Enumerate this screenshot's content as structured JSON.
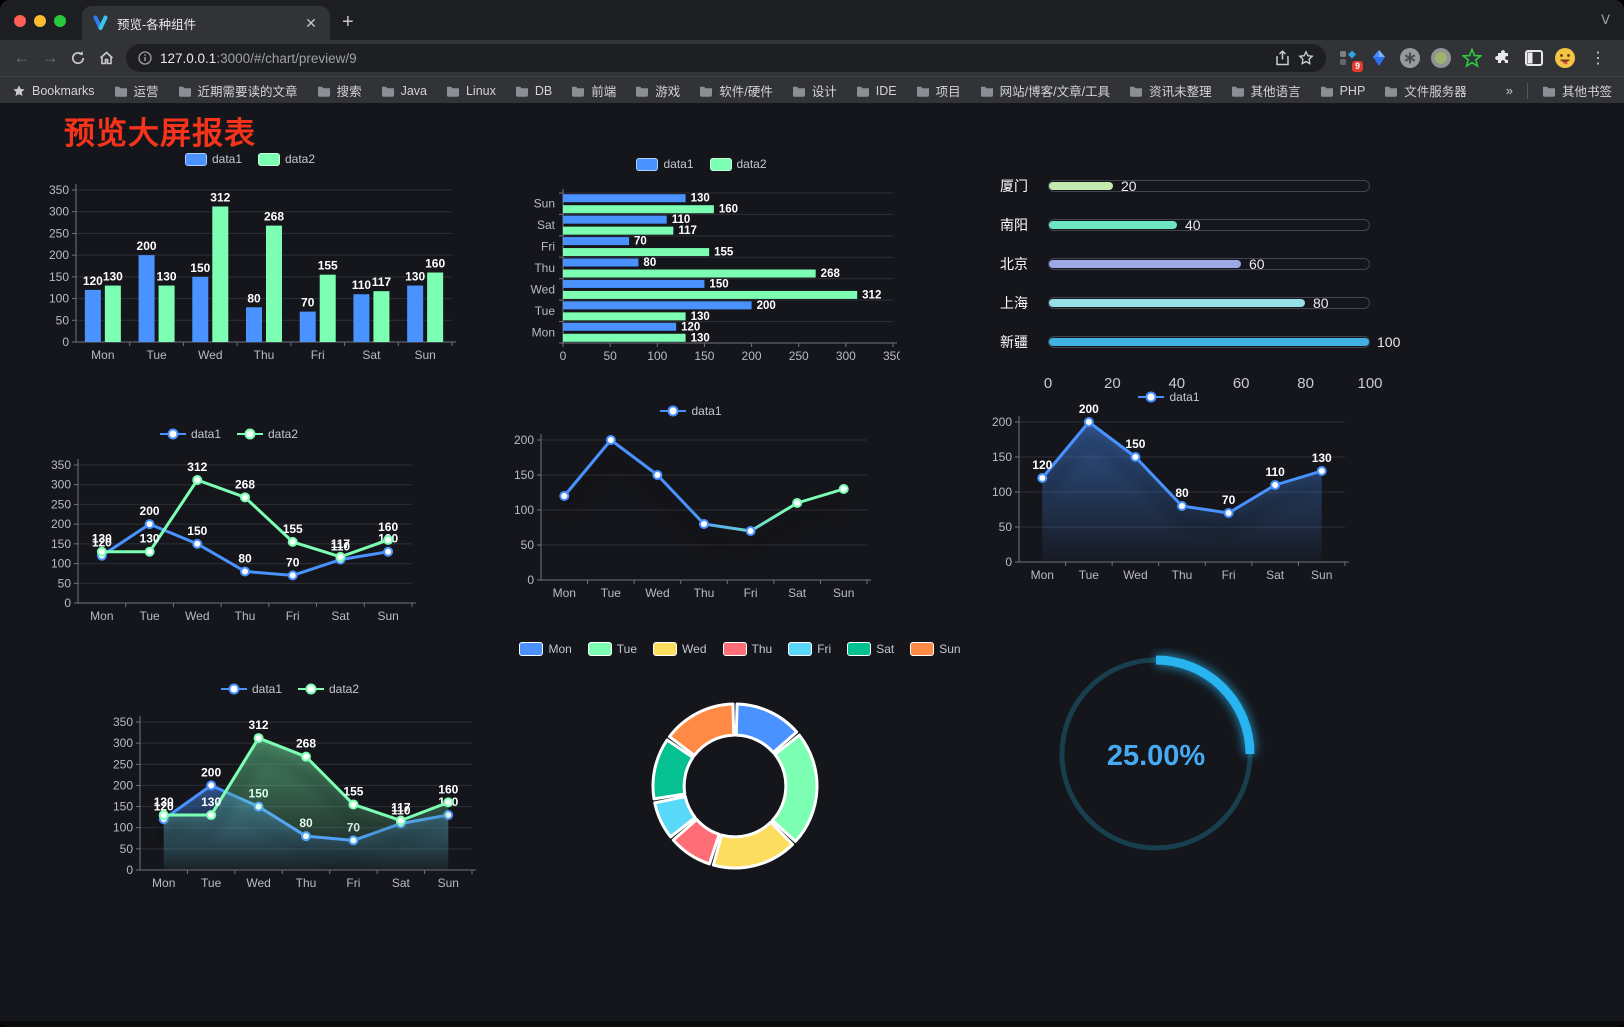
{
  "browser": {
    "tab_title": "预览-各种组件",
    "url": {
      "host": "127.0.0.1",
      "rest": ":3000/#/chart/preview/9"
    },
    "bookmarks_label": "Bookmarks",
    "bookmarks": [
      "运营",
      "近期需要读的文章",
      "搜索",
      "Java",
      "Linux",
      "DB",
      "前端",
      "游戏",
      "软件/硬件",
      "设计",
      "IDE",
      "项目",
      "网站/博客/文章/工具",
      "资讯未整理",
      "其他语言",
      "PHP",
      "文件服务器"
    ],
    "bookmarks_overflow": "»",
    "other_bookmarks": "其他书签",
    "extension_badge": "9",
    "icons": [
      "back-icon",
      "forward-icon",
      "reload-icon",
      "home-icon",
      "info-icon",
      "share-icon",
      "star-icon",
      "extension-grid-icon",
      "kite-icon",
      "asterisk-circle-icon",
      "olive-circle-icon",
      "green-star-icon",
      "puzzle-icon",
      "sidebar-icon",
      "emoji-avatar",
      "menu-dots-icon"
    ]
  },
  "page": {
    "title": "预览大屏报表",
    "title_color": "#f8331b",
    "background": "#15161b"
  },
  "colors": {
    "series_blue": "#4992ff",
    "series_green": "#7cffb2",
    "axis_line": "#71737f",
    "grid_line": "#2e3039",
    "tick_text": "#b9bac6",
    "value_label": "#ffffff",
    "gauge_blue": "#28b4f0",
    "gauge_track": "#173f4d"
  },
  "chart_data": [
    {
      "id": "grouped-bar-vertical",
      "type": "bar",
      "categories": [
        "Mon",
        "Tue",
        "Wed",
        "Thu",
        "Fri",
        "Sat",
        "Sun"
      ],
      "series": [
        {
          "name": "data1",
          "color": "#4992ff",
          "values": [
            120,
            200,
            150,
            80,
            70,
            110,
            130
          ]
        },
        {
          "name": "data2",
          "color": "#7cffb2",
          "values": [
            130,
            130,
            312,
            268,
            155,
            117,
            160
          ]
        }
      ],
      "ylim": [
        0,
        350
      ],
      "ytick_step": 50,
      "legend_position": "top",
      "grid": true,
      "value_labels": true
    },
    {
      "id": "grouped-bar-horizontal",
      "type": "bar-horizontal",
      "categories": [
        "Mon",
        "Tue",
        "Wed",
        "Thu",
        "Fri",
        "Sat",
        "Sun"
      ],
      "category_axis_order": "bottom-to-top",
      "series": [
        {
          "name": "data1",
          "color": "#4992ff",
          "values": [
            120,
            200,
            150,
            80,
            70,
            110,
            130
          ]
        },
        {
          "name": "data2",
          "color": "#7cffb2",
          "values": [
            130,
            130,
            312,
            268,
            155,
            117,
            160
          ]
        }
      ],
      "xlim": [
        0,
        350
      ],
      "xtick_step": 50,
      "legend_position": "top",
      "value_labels": true
    },
    {
      "id": "city-progress-bars",
      "type": "bar",
      "variant": "progress",
      "xlim": [
        0,
        100
      ],
      "ticks": [
        0,
        20,
        40,
        60,
        80,
        100
      ],
      "rows": [
        {
          "label": "厦门",
          "value": 20,
          "color": "#c4ebad"
        },
        {
          "label": "南阳",
          "value": 40,
          "color": "#6be6c1"
        },
        {
          "label": "北京",
          "value": 60,
          "color": "#a0a7e6"
        },
        {
          "label": "上海",
          "value": 80,
          "color": "#96dee8"
        },
        {
          "label": "新疆",
          "value": 100,
          "color": "#3fb1e3"
        }
      ]
    },
    {
      "id": "line-two-series",
      "type": "line",
      "categories": [
        "Mon",
        "Tue",
        "Wed",
        "Thu",
        "Fri",
        "Sat",
        "Sun"
      ],
      "series": [
        {
          "name": "data1",
          "color": "#4992ff",
          "values": [
            120,
            200,
            150,
            80,
            70,
            110,
            130
          ]
        },
        {
          "name": "data2",
          "color": "#7cffb2",
          "values": [
            130,
            130,
            312,
            268,
            155,
            117,
            160
          ]
        }
      ],
      "ylim": [
        0,
        350
      ],
      "ytick_step": 50,
      "legend_position": "top",
      "value_labels": true
    },
    {
      "id": "line-gradient-single",
      "type": "line",
      "categories": [
        "Mon",
        "Tue",
        "Wed",
        "Thu",
        "Fri",
        "Sat",
        "Sun"
      ],
      "series": [
        {
          "name": "data1",
          "color": "#4992ff",
          "color_end": "#7cffb2",
          "gradient": true,
          "values": [
            120,
            200,
            150,
            80,
            70,
            110,
            130
          ]
        }
      ],
      "ylim": [
        0,
        200
      ],
      "ytick_step": 50,
      "legend_position": "top",
      "value_labels": false
    },
    {
      "id": "area-single",
      "type": "area",
      "categories": [
        "Mon",
        "Tue",
        "Wed",
        "Thu",
        "Fri",
        "Sat",
        "Sun"
      ],
      "series": [
        {
          "name": "data1",
          "color": "#4992ff",
          "values": [
            120,
            200,
            150,
            80,
            70,
            110,
            130
          ]
        }
      ],
      "ylim": [
        0,
        200
      ],
      "ytick_step": 50,
      "legend_position": "top",
      "value_labels": true
    },
    {
      "id": "area-two-series",
      "type": "area",
      "categories": [
        "Mon",
        "Tue",
        "Wed",
        "Thu",
        "Fri",
        "Sat",
        "Sun"
      ],
      "series": [
        {
          "name": "data1",
          "color": "#4992ff",
          "values": [
            120,
            200,
            150,
            80,
            70,
            110,
            130
          ]
        },
        {
          "name": "data2",
          "color": "#7cffb2",
          "values": [
            130,
            130,
            312,
            268,
            155,
            117,
            160
          ]
        }
      ],
      "ylim": [
        0,
        350
      ],
      "ytick_step": 50,
      "legend_position": "top",
      "value_labels": true
    },
    {
      "id": "weekday-donut",
      "type": "pie",
      "inner_radius_ratio": 0.62,
      "categories": [
        "Mon",
        "Tue",
        "Wed",
        "Thu",
        "Fri",
        "Sat",
        "Sun"
      ],
      "values": [
        120,
        200,
        150,
        80,
        70,
        110,
        130
      ],
      "colors": [
        "#4992ff",
        "#7cffb2",
        "#fddd60",
        "#ff6e76",
        "#58d9f9",
        "#05c091",
        "#ff8a45"
      ],
      "legend_position": "top"
    },
    {
      "id": "progress-gauge",
      "type": "gauge",
      "value": 25,
      "display": "25.00%",
      "color": "#28b4f0",
      "track_color": "#173f4d",
      "text_color": "#45aaf2"
    }
  ]
}
